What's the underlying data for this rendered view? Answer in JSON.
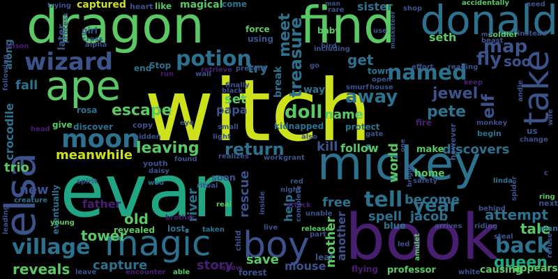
{
  "palette": [
    "#cde11d",
    "#21a685",
    "#5ac864",
    "#3b528b",
    "#2c728e",
    "#481f70",
    "#440154",
    "#1f988b"
  ],
  "words": [
    {
      "text": "witch",
      "color": "#cde11d"
    },
    {
      "text": "evan",
      "color": "#21a685"
    },
    {
      "text": "book",
      "color": "#481f70"
    },
    {
      "text": "dragon",
      "color": "#5ac864"
    },
    {
      "text": "find",
      "color": "#5ac864"
    },
    {
      "text": "mickey",
      "color": "#2c728e"
    },
    {
      "text": "elsa",
      "color": "#3b528b"
    },
    {
      "text": "donald",
      "color": "#2c728e"
    },
    {
      "text": "ape",
      "color": "#5ac864"
    },
    {
      "text": "take",
      "color": "#3b528b"
    },
    {
      "text": "magic",
      "color": "#2c728e"
    },
    {
      "text": "boy",
      "color": "#3b528b"
    },
    {
      "text": "wizard",
      "color": "#3b528b"
    },
    {
      "text": "moon",
      "color": "#2c728e"
    },
    {
      "text": "potion",
      "color": "#2c728e"
    },
    {
      "text": "named",
      "color": "#2c728e"
    },
    {
      "text": "map",
      "color": "#3b528b"
    },
    {
      "text": "village",
      "color": "#2c728e"
    },
    {
      "text": "back",
      "color": "#2c728e"
    },
    {
      "text": "queen",
      "color": "#21a685"
    },
    {
      "text": "tell",
      "color": "#2c728e"
    },
    {
      "text": "doll",
      "color": "#5ac864"
    },
    {
      "text": "fly",
      "color": "#3b528b"
    },
    {
      "text": "soo",
      "color": "#3b528b"
    },
    {
      "text": "meet",
      "color": "#2c728e"
    },
    {
      "text": "treasure",
      "color": "#2c728e"
    },
    {
      "text": "get",
      "color": "#2c728e"
    },
    {
      "text": "away",
      "color": "#2c728e"
    },
    {
      "text": "jewel",
      "color": "#3b528b"
    },
    {
      "text": "pete",
      "color": "#2c728e"
    },
    {
      "text": "elf",
      "color": "#3b528b"
    },
    {
      "text": "escape",
      "color": "#5ac864"
    },
    {
      "text": "leaving",
      "color": "#5ac864"
    },
    {
      "text": "return",
      "color": "#2c728e"
    },
    {
      "text": "discovers",
      "color": "#2c728e"
    },
    {
      "text": "attempt",
      "color": "#2c728e"
    },
    {
      "text": "year",
      "color": "#2c728e"
    },
    {
      "text": "become",
      "color": "#2c728e"
    },
    {
      "text": "tale",
      "color": "#5ac864"
    },
    {
      "text": "tower",
      "color": "#5ac864"
    },
    {
      "text": "capture",
      "color": "#2c728e"
    },
    {
      "text": "reveals",
      "color": "#5ac864"
    },
    {
      "text": "story",
      "color": "#481f70"
    },
    {
      "text": "save",
      "color": "#5ac864"
    },
    {
      "text": "mouse",
      "color": "#3b528b"
    },
    {
      "text": "professor",
      "color": "#5ac864"
    },
    {
      "text": "causing",
      "color": "#5ac864"
    },
    {
      "text": "appears",
      "color": "#5ac864"
    },
    {
      "text": "spell",
      "color": "#2c728e"
    },
    {
      "text": "jacob",
      "color": "#2c728e"
    },
    {
      "text": "free",
      "color": "#2c728e"
    },
    {
      "text": "old",
      "color": "#5ac864"
    },
    {
      "text": "father",
      "color": "#481f70"
    },
    {
      "text": "trio",
      "color": "#5ac864"
    },
    {
      "text": "meanwhile",
      "color": "#cde11d"
    },
    {
      "text": "new",
      "color": "#3b528b"
    },
    {
      "text": "fall",
      "color": "#2c728e"
    },
    {
      "text": "set",
      "color": "#5ac864"
    },
    {
      "text": "papa",
      "color": "#3b528b"
    },
    {
      "text": "name",
      "color": "#5ac864"
    },
    {
      "text": "kill",
      "color": "#3b528b"
    },
    {
      "text": "follow",
      "color": "#5ac864"
    },
    {
      "text": "make",
      "color": "#5ac864"
    },
    {
      "text": "seth",
      "color": "#5ac864"
    },
    {
      "text": "home",
      "color": "#5ac864"
    },
    {
      "text": "world",
      "color": "#5ac864"
    },
    {
      "text": "rescue",
      "color": "#3b528b"
    },
    {
      "text": "river",
      "color": "#2c728e"
    },
    {
      "text": "help",
      "color": "#2c728e"
    },
    {
      "text": "mother",
      "color": "#5ac864"
    },
    {
      "text": "another",
      "color": "#3b528b"
    },
    {
      "text": "blue",
      "color": "#2c728e"
    },
    {
      "text": "captured",
      "color": "#cde11d"
    },
    {
      "text": "sister",
      "color": "#2c728e"
    },
    {
      "text": "try",
      "color": "#2c728e"
    },
    {
      "text": "break",
      "color": "#2c728e"
    },
    {
      "text": "crocodile",
      "color": "#2c728e"
    },
    {
      "text": "along",
      "color": "#2c728e"
    },
    {
      "text": "later",
      "color": "#3b528b"
    },
    {
      "text": "magical",
      "color": "#5ac864"
    },
    {
      "text": "heart",
      "color": "#3b528b"
    },
    {
      "text": "like",
      "color": "#5ac864"
    },
    {
      "text": "come",
      "color": "#2c728e"
    },
    {
      "text": "force",
      "color": "#5ac864"
    },
    {
      "text": "using",
      "color": "#3b528b"
    },
    {
      "text": "baby",
      "color": "#5ac864"
    },
    {
      "text": "girl",
      "color": "#3b528b"
    },
    {
      "text": "end",
      "color": "#2c728e"
    },
    {
      "text": "Stop",
      "color": "#2c728e"
    },
    {
      "text": "way",
      "color": "#2c728e"
    },
    {
      "text": "town",
      "color": "#2c728e"
    },
    {
      "text": "rosa",
      "color": "#2c728e"
    },
    {
      "text": "give",
      "color": "#5ac864"
    },
    {
      "text": "discover",
      "color": "#2c728e"
    },
    {
      "text": "copy",
      "color": "#3b528b"
    },
    {
      "text": "kidnapped",
      "color": "#2c728e"
    },
    {
      "text": "protect",
      "color": "#2c728e"
    },
    {
      "text": "begin",
      "color": "#2c728e"
    },
    {
      "text": "us",
      "color": "#3b528b"
    },
    {
      "text": "youth",
      "color": "#3b528b"
    },
    {
      "text": "daisy",
      "color": "#3b528b"
    },
    {
      "text": "spirit",
      "color": "#3b528b"
    },
    {
      "text": "woo",
      "color": "#2c728e"
    },
    {
      "text": "soon",
      "color": "#3b528b"
    },
    {
      "text": "eventually",
      "color": "#2c728e"
    },
    {
      "text": "creature",
      "color": "#2c728e"
    },
    {
      "text": "leading",
      "color": "#3b528b"
    },
    {
      "text": "young",
      "color": "#5ac864"
    },
    {
      "text": "revealed",
      "color": "#5ac864"
    },
    {
      "text": "lost",
      "color": "#2c728e"
    },
    {
      "text": "brother",
      "color": "#481f70"
    },
    {
      "text": "child",
      "color": "#3b528b"
    },
    {
      "text": "forest",
      "color": "#3b528b"
    },
    {
      "text": "leaf",
      "color": "#3b528b"
    },
    {
      "text": "flying",
      "color": "#481f70"
    },
    {
      "text": "real",
      "color": "#5ac864"
    },
    {
      "text": "taken",
      "color": "#2c728e"
    },
    {
      "text": "live",
      "color": "#3b528b"
    },
    {
      "text": "release",
      "color": "#5ac864"
    },
    {
      "text": "next",
      "color": "#3b528b"
    },
    {
      "text": "behind",
      "color": "#3b528b"
    },
    {
      "text": "riding",
      "color": "#3b528b"
    },
    {
      "text": "arrives",
      "color": "#3b528b"
    },
    {
      "text": "steal",
      "color": "#3b528b"
    },
    {
      "text": "plan",
      "color": "#2c728e"
    },
    {
      "text": "ring",
      "color": "#5ac864"
    },
    {
      "text": "refuse",
      "color": "#3b528b"
    },
    {
      "text": "amulet",
      "color": "#5ac864"
    },
    {
      "text": "white",
      "color": "#3b528b"
    },
    {
      "text": "however",
      "color": "#3b528b"
    },
    {
      "text": "monkey",
      "color": "#3b528b"
    },
    {
      "text": "fire",
      "color": "#481f70"
    },
    {
      "text": "linda",
      "color": "#2c728e"
    },
    {
      "text": "safety",
      "color": "#3b528b"
    },
    {
      "text": "spider",
      "color": "#3b528b"
    },
    {
      "text": "change",
      "color": "#3b528b"
    },
    {
      "text": "wife",
      "color": "#3b528b"
    },
    {
      "text": "grant",
      "color": "#3b528b"
    },
    {
      "text": "realizes",
      "color": "#3b528b"
    },
    {
      "text": "found",
      "color": "#3b528b"
    },
    {
      "text": "work",
      "color": "#3b528b"
    },
    {
      "text": "night",
      "color": "#3b528b"
    },
    {
      "text": "red",
      "color": "#3b528b"
    },
    {
      "text": "also",
      "color": "#3b528b"
    },
    {
      "text": "gate",
      "color": "#3b528b"
    },
    {
      "text": "light",
      "color": "#3b528b"
    },
    {
      "text": "small",
      "color": "#3b528b"
    },
    {
      "text": "eye",
      "color": "#3b528b"
    },
    {
      "text": "hidden",
      "color": "#3b528b"
    },
    {
      "text": "head",
      "color": "#481f70"
    },
    {
      "text": "finally",
      "color": "#3b528b"
    },
    {
      "text": "black",
      "color": "#3b528b"
    },
    {
      "text": "wall",
      "color": "#3b528b"
    },
    {
      "text": "run",
      "color": "#481f70"
    },
    {
      "text": "retrieve",
      "color": "#481f70"
    },
    {
      "text": "present",
      "color": "#3b528b"
    },
    {
      "text": "open",
      "color": "#3b528b"
    },
    {
      "text": "house",
      "color": "#3b528b"
    },
    {
      "text": "smurf",
      "color": "#3b528b"
    },
    {
      "text": "go",
      "color": "#3b528b"
    },
    {
      "text": "attack",
      "color": "#481f70"
    },
    {
      "text": "unable",
      "color": "#3b528b"
    },
    {
      "text": "part",
      "color": "#3b528b"
    },
    {
      "text": "complete",
      "color": "#3b528b"
    },
    {
      "text": "inside",
      "color": "#3b528b"
    },
    {
      "text": "ritual",
      "color": "#3b528b"
    },
    {
      "text": "show",
      "color": "#481f70"
    },
    {
      "text": "encounter",
      "color": "#481f70"
    },
    {
      "text": "able",
      "color": "#5ac864"
    },
    {
      "text": "leave",
      "color": "#3b528b"
    },
    {
      "text": "alpha",
      "color": "#3b528b"
    },
    {
      "text": "trying",
      "color": "#3b528b"
    },
    {
      "text": "cross",
      "color": "#3b528b"
    },
    {
      "text": "process",
      "color": "#3b528b"
    },
    {
      "text": "alison",
      "color": "#481f70"
    },
    {
      "text": "following",
      "color": "#3b528b"
    },
    {
      "text": "rare",
      "color": "#3b528b"
    },
    {
      "text": "man",
      "color": "#3b528b"
    },
    {
      "text": "bird",
      "color": "#3b528b"
    },
    {
      "text": "use",
      "color": "#3b528b"
    },
    {
      "text": "including",
      "color": "#3b528b"
    },
    {
      "text": "musketeer",
      "color": "#3b528b"
    },
    {
      "text": "shop",
      "color": "#3b528b"
    },
    {
      "text": "accidentally",
      "color": "#5ac864"
    },
    {
      "text": "need",
      "color": "#3b528b"
    },
    {
      "text": "soldier",
      "color": "#5ac864"
    },
    {
      "text": "instead",
      "color": "#3b528b"
    },
    {
      "text": "beast",
      "color": "#3b528b"
    },
    {
      "text": "mo",
      "color": "#3b528b"
    },
    {
      "text": "effort",
      "color": "#3b528b"
    },
    {
      "text": "reading",
      "color": "#3b528b"
    },
    {
      "text": "keep",
      "color": "#481f70"
    },
    {
      "text": "andie",
      "color": "#3b528b"
    },
    {
      "text": "briggs",
      "color": "#3b528b"
    },
    {
      "text": "one",
      "color": "#3b528b"
    },
    {
      "text": "c",
      "color": "#3b528b"
    },
    {
      "text": "led",
      "color": "#3b528b"
    }
  ]
}
